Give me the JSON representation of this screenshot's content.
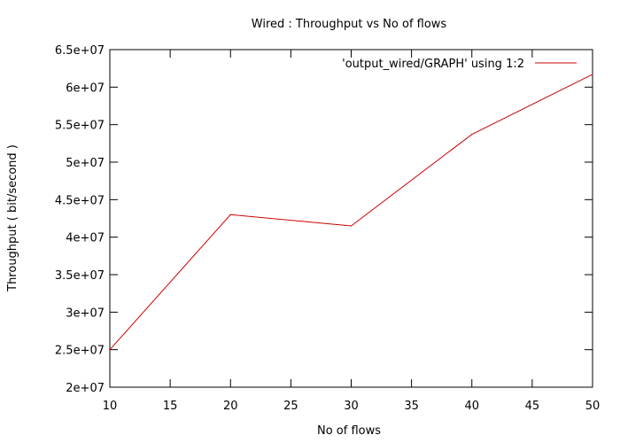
{
  "chart_data": {
    "type": "line",
    "title": "Wired : Throughput vs No of flows",
    "xlabel": "No of flows",
    "ylabel": "Throughput ( bit/second )",
    "xlim": [
      10,
      50
    ],
    "ylim": [
      20000000,
      65000000
    ],
    "grid": false,
    "legend_position": "top-right",
    "x_ticks": [
      10,
      15,
      20,
      25,
      30,
      35,
      40,
      45,
      50
    ],
    "x_tick_labels": [
      "10",
      "15",
      "20",
      "25",
      "30",
      "35",
      "40",
      "45",
      "50"
    ],
    "y_ticks": [
      20000000,
      25000000,
      30000000,
      35000000,
      40000000,
      45000000,
      50000000,
      55000000,
      60000000,
      65000000
    ],
    "y_tick_labels": [
      "2e+07",
      "2.5e+07",
      "3e+07",
      "3.5e+07",
      "4e+07",
      "4.5e+07",
      "5e+07",
      "5.5e+07",
      "6e+07",
      "6.5e+07"
    ],
    "series": [
      {
        "name": "'output_wired/GRAPH' using 1:2",
        "color": "#cc0000",
        "x": [
          10,
          20,
          30,
          40,
          50
        ],
        "y": [
          25000000,
          43000000,
          41500000,
          53700000,
          61700000
        ]
      }
    ]
  }
}
